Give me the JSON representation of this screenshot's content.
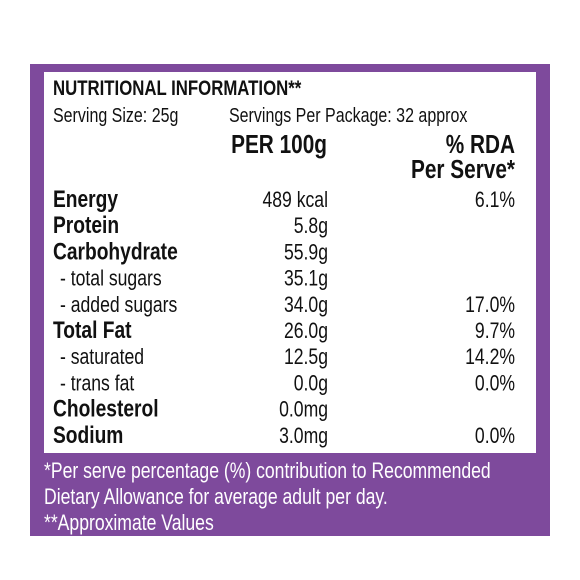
{
  "header": {
    "title": "NUTRITIONAL INFORMATION**",
    "serving_size": "Serving Size: 25g",
    "servings": "Servings Per Package: 32 approx"
  },
  "table": {
    "per_100g_header": "PER 100g",
    "rda_header": [
      "% RDA",
      "Per Serve*"
    ],
    "rows": [
      {
        "label": "Energy",
        "level": "main",
        "per_100g": "489 kcal",
        "rda": "6.1%"
      },
      {
        "label": "Protein",
        "level": "main",
        "per_100g": "5.8g"
      },
      {
        "label": "Carbohydrate",
        "level": "main",
        "per_100g": "55.9g"
      },
      {
        "label": "- total sugars",
        "level": "sub",
        "per_100g": "35.1g"
      },
      {
        "label": "- added sugars",
        "level": "sub",
        "per_100g": "34.0g",
        "rda": "17.0%"
      },
      {
        "label": "Total Fat",
        "level": "main",
        "per_100g": "26.0g",
        "rda": "9.7%"
      },
      {
        "label": "- saturated",
        "level": "sub",
        "per_100g": "12.5g",
        "rda": "14.2%"
      },
      {
        "label": "- trans fat",
        "level": "sub",
        "per_100g": "0.0g",
        "rda": "0.0%"
      },
      {
        "label": "Cholesterol",
        "level": "main",
        "per_100g": "0.0mg"
      },
      {
        "label": "Sodium",
        "level": "main",
        "per_100g": "3.0mg",
        "rda": "0.0%"
      }
    ]
  },
  "footer": {
    "lines": [
      "*Per serve percentage (%) contribution to Recommended",
      "Dietary Allowance for average adult per day.",
      "**Approximate Values"
    ]
  }
}
